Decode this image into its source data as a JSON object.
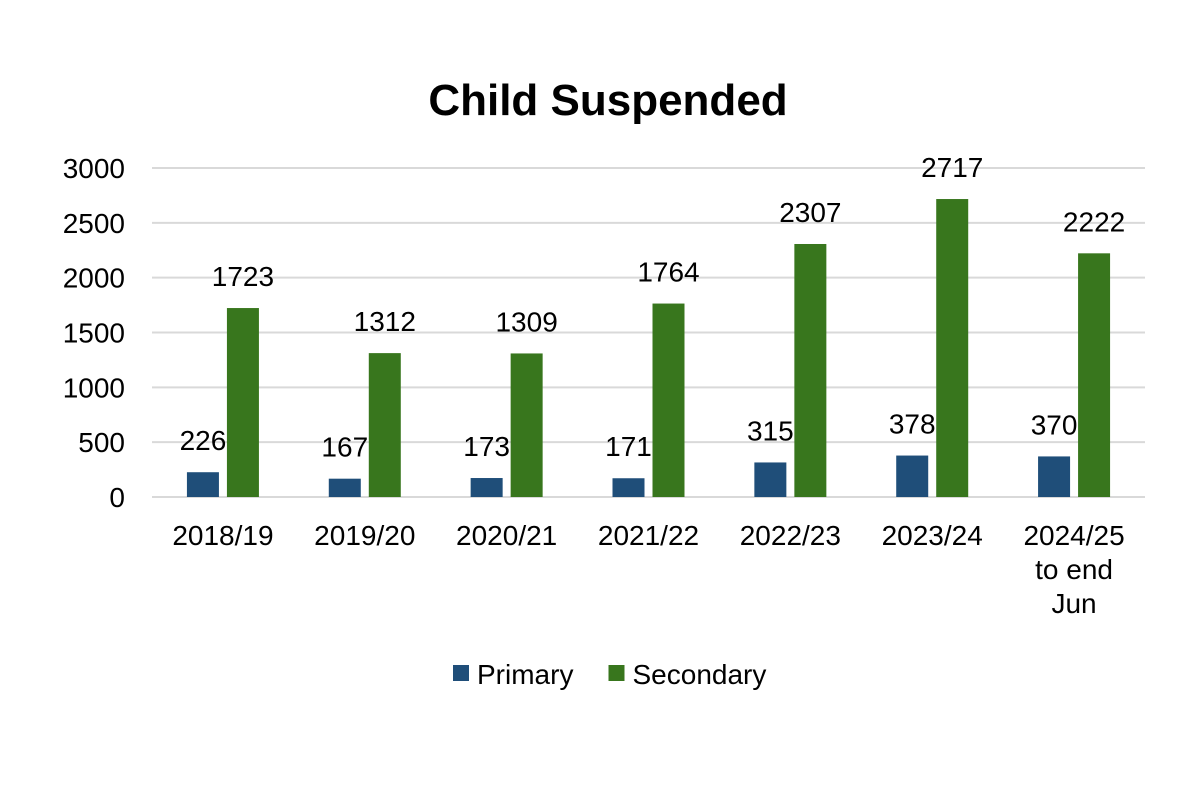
{
  "chart_data": {
    "type": "bar",
    "title": "Child Suspended",
    "xlabel": "",
    "ylabel": "",
    "ylim": [
      0,
      3000
    ],
    "yticks": [
      0,
      500,
      1000,
      1500,
      2000,
      2500,
      3000
    ],
    "grid": true,
    "legend_position": "bottom",
    "categories": [
      [
        "2018/19"
      ],
      [
        "2019/20"
      ],
      [
        "2020/21"
      ],
      [
        "2021/22"
      ],
      [
        "2022/23"
      ],
      [
        "2023/24"
      ],
      [
        "2024/25",
        "to end",
        "Jun"
      ]
    ],
    "series": [
      {
        "name": "Primary",
        "color": "#1f4e79",
        "values": [
          226,
          167,
          173,
          171,
          315,
          378,
          370
        ]
      },
      {
        "name": "Secondary",
        "color": "#38761d",
        "values": [
          1723,
          1312,
          1309,
          1764,
          2307,
          2717,
          2222
        ]
      }
    ]
  }
}
